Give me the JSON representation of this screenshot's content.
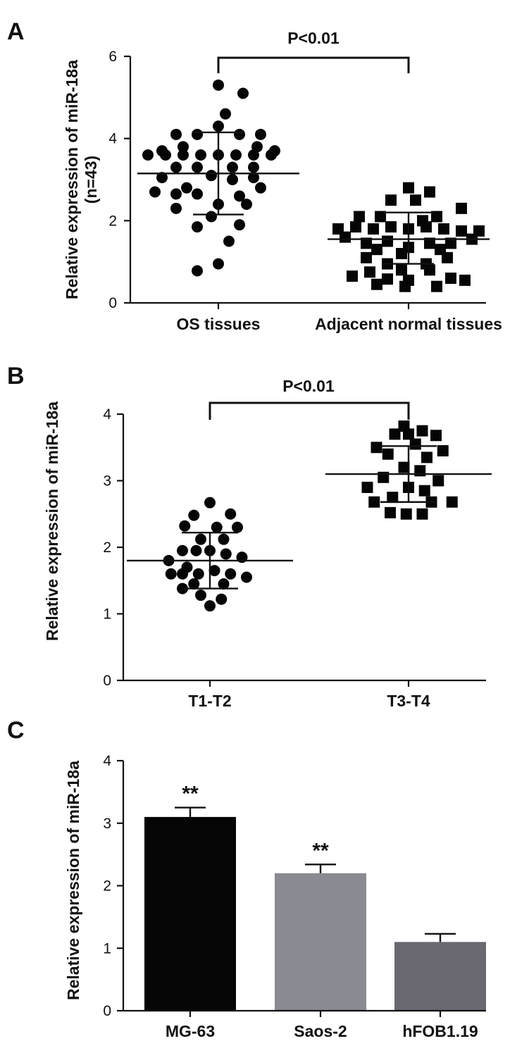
{
  "chart_data": [
    {
      "panel": "A",
      "type": "scatter",
      "ylabel": "Relative expression of miR-18a",
      "ylabel2": "(n=43)",
      "ylim": [
        0,
        6
      ],
      "yticks": [
        0,
        2,
        4,
        6
      ],
      "categories": [
        "OS tissues",
        "Adjacent normal tissues"
      ],
      "marker_shapes": [
        "circle",
        "square"
      ],
      "groups": [
        {
          "category": "OS tissues",
          "mean": 3.15,
          "sd_low": 2.15,
          "sd_high": 4.15,
          "points": [
            {
              "x": 0.0,
              "y": 5.3
            },
            {
              "x": 0.35,
              "y": 5.1
            },
            {
              "x": 0.1,
              "y": 4.6
            },
            {
              "x": 0.0,
              "y": 4.3
            },
            {
              "x": -0.6,
              "y": 4.1
            },
            {
              "x": -0.3,
              "y": 4.1
            },
            {
              "x": 0.3,
              "y": 4.1
            },
            {
              "x": 0.6,
              "y": 4.1
            },
            {
              "x": -0.8,
              "y": 3.7
            },
            {
              "x": 0.8,
              "y": 3.7
            },
            {
              "x": -0.5,
              "y": 3.8
            },
            {
              "x": 0.55,
              "y": 3.8
            },
            {
              "x": -1.0,
              "y": 3.6
            },
            {
              "x": -0.75,
              "y": 3.6
            },
            {
              "x": -0.5,
              "y": 3.6
            },
            {
              "x": -0.25,
              "y": 3.6
            },
            {
              "x": 0.0,
              "y": 3.6
            },
            {
              "x": 0.25,
              "y": 3.6
            },
            {
              "x": 0.5,
              "y": 3.6
            },
            {
              "x": 0.75,
              "y": 3.6
            },
            {
              "x": -0.6,
              "y": 3.3
            },
            {
              "x": -0.3,
              "y": 3.3
            },
            {
              "x": 0.2,
              "y": 3.3
            },
            {
              "x": 0.5,
              "y": 3.3
            },
            {
              "x": -0.1,
              "y": 3.1
            },
            {
              "x": -0.8,
              "y": 3.05
            },
            {
              "x": 0.5,
              "y": 3.05
            },
            {
              "x": 0.2,
              "y": 3.0
            },
            {
              "x": -0.45,
              "y": 2.8
            },
            {
              "x": 0.6,
              "y": 2.8
            },
            {
              "x": -0.9,
              "y": 2.7
            },
            {
              "x": -0.6,
              "y": 2.65
            },
            {
              "x": -0.3,
              "y": 2.65
            },
            {
              "x": 0.3,
              "y": 2.6
            },
            {
              "x": 0.0,
              "y": 2.4
            },
            {
              "x": -0.6,
              "y": 2.3
            },
            {
              "x": 0.4,
              "y": 2.4
            },
            {
              "x": -0.1,
              "y": 2.1
            },
            {
              "x": -0.3,
              "y": 1.85
            },
            {
              "x": 0.3,
              "y": 1.9
            },
            {
              "x": 0.15,
              "y": 1.5
            },
            {
              "x": 0.0,
              "y": 0.95
            },
            {
              "x": -0.3,
              "y": 0.78
            }
          ]
        },
        {
          "category": "Adjacent normal tissues",
          "mean": 1.55,
          "sd_low": 0.95,
          "sd_high": 2.2,
          "points": [
            {
              "x": 0.0,
              "y": 2.8
            },
            {
              "x": 0.3,
              "y": 2.7
            },
            {
              "x": -0.25,
              "y": 2.5
            },
            {
              "x": 0.1,
              "y": 2.5
            },
            {
              "x": 0.75,
              "y": 2.3
            },
            {
              "x": -0.7,
              "y": 2.1
            },
            {
              "x": -0.4,
              "y": 2.1
            },
            {
              "x": 0.4,
              "y": 2.1
            },
            {
              "x": 0.2,
              "y": 2.0
            },
            {
              "x": -1.0,
              "y": 1.8
            },
            {
              "x": -0.75,
              "y": 1.85
            },
            {
              "x": -0.5,
              "y": 1.8
            },
            {
              "x": -0.25,
              "y": 1.85
            },
            {
              "x": 0.0,
              "y": 1.8
            },
            {
              "x": 0.25,
              "y": 1.85
            },
            {
              "x": 0.5,
              "y": 1.8
            },
            {
              "x": 0.75,
              "y": 1.75
            },
            {
              "x": 1.0,
              "y": 1.75
            },
            {
              "x": -0.9,
              "y": 1.6
            },
            {
              "x": 0.9,
              "y": 1.55
            },
            {
              "x": -0.6,
              "y": 1.45
            },
            {
              "x": -0.3,
              "y": 1.5
            },
            {
              "x": 0.3,
              "y": 1.45
            },
            {
              "x": 0.6,
              "y": 1.45
            },
            {
              "x": -0.45,
              "y": 1.3
            },
            {
              "x": 0.0,
              "y": 1.35
            },
            {
              "x": 0.45,
              "y": 1.3
            },
            {
              "x": -0.6,
              "y": 1.1
            },
            {
              "x": -0.1,
              "y": 1.2
            },
            {
              "x": 0.55,
              "y": 1.1
            },
            {
              "x": -0.3,
              "y": 0.95
            },
            {
              "x": 0.25,
              "y": 0.95
            },
            {
              "x": -0.55,
              "y": 0.75
            },
            {
              "x": -0.1,
              "y": 0.8
            },
            {
              "x": 0.3,
              "y": 0.8
            },
            {
              "x": -0.8,
              "y": 0.65
            },
            {
              "x": 0.6,
              "y": 0.6
            },
            {
              "x": 0.0,
              "y": 0.55
            },
            {
              "x": -0.45,
              "y": 0.45
            },
            {
              "x": -0.05,
              "y": 0.4
            },
            {
              "x": 0.4,
              "y": 0.4
            },
            {
              "x": 0.8,
              "y": 0.55
            },
            {
              "x": -0.3,
              "y": 0.58
            }
          ]
        }
      ],
      "annotation": {
        "text": "P<0.01",
        "from": 0,
        "to": 1
      }
    },
    {
      "panel": "B",
      "type": "scatter",
      "ylabel": "Relative expression of miR-18a",
      "ylim": [
        0,
        4
      ],
      "yticks": [
        0,
        1,
        2,
        3,
        4
      ],
      "categories": [
        "T1-T2",
        "T3-T4"
      ],
      "marker_shapes": [
        "circle",
        "square"
      ],
      "groups": [
        {
          "category": "T1-T2",
          "mean": 1.8,
          "sd_low": 1.38,
          "sd_high": 2.22,
          "points": [
            {
              "x": 0.0,
              "y": 2.67
            },
            {
              "x": -0.35,
              "y": 2.48
            },
            {
              "x": 0.45,
              "y": 2.5
            },
            {
              "x": -0.55,
              "y": 2.32
            },
            {
              "x": 0.15,
              "y": 2.3
            },
            {
              "x": 0.6,
              "y": 2.3
            },
            {
              "x": -0.2,
              "y": 2.12
            },
            {
              "x": 0.3,
              "y": 2.12
            },
            {
              "x": -0.6,
              "y": 1.95
            },
            {
              "x": -0.3,
              "y": 1.95
            },
            {
              "x": 0.0,
              "y": 1.95
            },
            {
              "x": 0.35,
              "y": 1.9
            },
            {
              "x": -0.9,
              "y": 1.8
            },
            {
              "x": 0.7,
              "y": 1.85
            },
            {
              "x": -0.5,
              "y": 1.7
            },
            {
              "x": -0.85,
              "y": 1.6
            },
            {
              "x": -0.6,
              "y": 1.6
            },
            {
              "x": -0.25,
              "y": 1.6
            },
            {
              "x": 0.1,
              "y": 1.65
            },
            {
              "x": 0.45,
              "y": 1.6
            },
            {
              "x": 0.8,
              "y": 1.55
            },
            {
              "x": -0.35,
              "y": 1.45
            },
            {
              "x": 0.3,
              "y": 1.45
            },
            {
              "x": -0.6,
              "y": 1.38
            },
            {
              "x": -0.2,
              "y": 1.28
            },
            {
              "x": 0.25,
              "y": 1.22
            },
            {
              "x": 0.0,
              "y": 1.12
            }
          ]
        },
        {
          "category": "T3-T4",
          "mean": 3.1,
          "sd_low": 2.68,
          "sd_high": 3.52,
          "points": [
            {
              "x": -0.1,
              "y": 3.82
            },
            {
              "x": 0.3,
              "y": 3.75
            },
            {
              "x": -0.3,
              "y": 3.7
            },
            {
              "x": 0.0,
              "y": 3.7
            },
            {
              "x": 0.6,
              "y": 3.68
            },
            {
              "x": 0.15,
              "y": 3.55
            },
            {
              "x": -0.7,
              "y": 3.5
            },
            {
              "x": 0.75,
              "y": 3.45
            },
            {
              "x": -0.45,
              "y": 3.4
            },
            {
              "x": 0.4,
              "y": 3.35
            },
            {
              "x": -0.1,
              "y": 3.2
            },
            {
              "x": 0.25,
              "y": 3.15
            },
            {
              "x": -0.55,
              "y": 3.05
            },
            {
              "x": 0.65,
              "y": 3.0
            },
            {
              "x": -0.9,
              "y": 2.9
            },
            {
              "x": 0.0,
              "y": 2.9
            },
            {
              "x": 0.35,
              "y": 2.85
            },
            {
              "x": -0.35,
              "y": 2.75
            },
            {
              "x": 0.95,
              "y": 2.68
            },
            {
              "x": -0.75,
              "y": 2.68
            },
            {
              "x": 0.5,
              "y": 2.68
            },
            {
              "x": -0.4,
              "y": 2.52
            },
            {
              "x": -0.05,
              "y": 2.5
            },
            {
              "x": 0.3,
              "y": 2.5
            }
          ]
        }
      ],
      "annotation": {
        "text": "P<0.01",
        "from": 0,
        "to": 1
      }
    },
    {
      "panel": "C",
      "type": "bar",
      "ylabel": "Relative expression of miR-18a",
      "ylim": [
        0,
        4
      ],
      "yticks": [
        0,
        1,
        2,
        3,
        4
      ],
      "categories": [
        "MG-63",
        "Saos-2",
        "hFOB1.19"
      ],
      "values": [
        3.1,
        2.2,
        1.1
      ],
      "errors": [
        0.15,
        0.14,
        0.13
      ],
      "colors": [
        "#050505",
        "#8a8a92",
        "#6a6870"
      ],
      "annotations": [
        "**",
        "**",
        ""
      ]
    }
  ]
}
